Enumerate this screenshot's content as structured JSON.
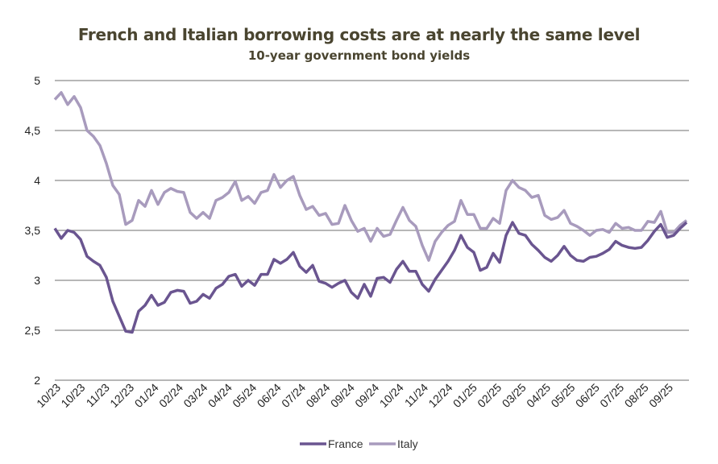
{
  "chart_data": {
    "type": "line",
    "title": "French and Italian borrowing costs are at nearly the same level",
    "subtitle": "10-year government bond yields",
    "xlabel": "",
    "ylabel": "",
    "ylim": [
      2,
      5
    ],
    "yticks": [
      "2",
      "2,5",
      "3",
      "3,5",
      "4",
      "4,5",
      "5"
    ],
    "xticks": [
      "10/23",
      "10/23",
      "11/23",
      "12/23",
      "01/24",
      "02/24",
      "03/24",
      "04/24",
      "05/24",
      "06/24",
      "07/24",
      "08/24",
      "09/24",
      "09/24",
      "10/24",
      "11/24",
      "12/24",
      "01/25",
      "02/25",
      "03/25",
      "04/25",
      "05/25",
      "06/25",
      "07/25",
      "08/25",
      "09/25"
    ],
    "grid": true,
    "legend_position": "bottom",
    "series": [
      {
        "name": "France",
        "color": "#6a5590",
        "values": [
          3.52,
          3.42,
          3.5,
          3.48,
          3.41,
          3.24,
          3.19,
          3.15,
          3.03,
          2.79,
          2.64,
          2.49,
          2.48,
          2.69,
          2.75,
          2.85,
          2.75,
          2.78,
          2.88,
          2.9,
          2.89,
          2.77,
          2.79,
          2.86,
          2.82,
          2.92,
          2.96,
          3.04,
          3.06,
          2.94,
          3.0,
          2.95,
          3.06,
          3.06,
          3.21,
          3.17,
          3.21,
          3.28,
          3.14,
          3.08,
          3.15,
          2.99,
          2.97,
          2.93,
          2.97,
          3.0,
          2.88,
          2.82,
          2.96,
          2.84,
          3.02,
          3.03,
          2.98,
          3.11,
          3.19,
          3.09,
          3.09,
          2.96,
          2.89,
          3.01,
          3.1,
          3.19,
          3.3,
          3.45,
          3.33,
          3.28,
          3.1,
          3.13,
          3.27,
          3.18,
          3.45,
          3.58,
          3.47,
          3.45,
          3.36,
          3.3,
          3.23,
          3.19,
          3.25,
          3.34,
          3.25,
          3.2,
          3.19,
          3.23,
          3.24,
          3.27,
          3.31,
          3.39,
          3.35,
          3.33,
          3.32,
          3.33,
          3.4,
          3.49,
          3.56,
          3.43,
          3.45,
          3.52,
          3.58
        ]
      },
      {
        "name": "Italy",
        "color": "#a89bbd",
        "values": [
          4.81,
          4.88,
          4.76,
          4.84,
          4.73,
          4.5,
          4.44,
          4.35,
          4.17,
          3.95,
          3.86,
          3.56,
          3.6,
          3.8,
          3.74,
          3.9,
          3.76,
          3.88,
          3.92,
          3.89,
          3.88,
          3.68,
          3.62,
          3.68,
          3.62,
          3.8,
          3.83,
          3.88,
          3.99,
          3.8,
          3.84,
          3.77,
          3.88,
          3.9,
          4.06,
          3.93,
          4.0,
          4.04,
          3.85,
          3.71,
          3.74,
          3.65,
          3.67,
          3.56,
          3.57,
          3.75,
          3.6,
          3.49,
          3.52,
          3.39,
          3.52,
          3.44,
          3.46,
          3.6,
          3.73,
          3.6,
          3.54,
          3.35,
          3.2,
          3.39,
          3.48,
          3.55,
          3.59,
          3.8,
          3.66,
          3.66,
          3.52,
          3.52,
          3.62,
          3.57,
          3.9,
          4.0,
          3.93,
          3.9,
          3.83,
          3.85,
          3.65,
          3.61,
          3.63,
          3.7,
          3.57,
          3.54,
          3.5,
          3.45,
          3.5,
          3.51,
          3.48,
          3.57,
          3.52,
          3.53,
          3.5,
          3.5,
          3.59,
          3.58,
          3.69,
          3.48,
          3.48,
          3.55,
          3.6
        ]
      }
    ]
  }
}
